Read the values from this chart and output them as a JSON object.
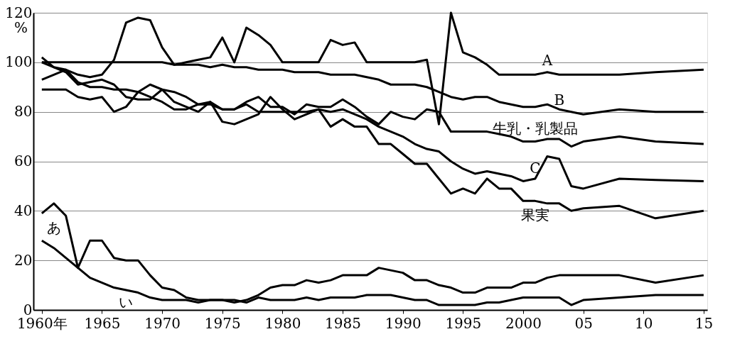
{
  "chart_data": {
    "type": "line",
    "ylabel": "%",
    "x": [
      1960,
      1961,
      1962,
      1963,
      1964,
      1965,
      1966,
      1967,
      1968,
      1969,
      1970,
      1971,
      1972,
      1973,
      1974,
      1975,
      1976,
      1977,
      1978,
      1979,
      1980,
      1981,
      1982,
      1983,
      1984,
      1985,
      1986,
      1987,
      1988,
      1989,
      1990,
      1991,
      1992,
      1993,
      1994,
      1995,
      1996,
      1997,
      1998,
      1999,
      2000,
      2001,
      2002,
      2003,
      2004,
      2005,
      2008,
      2011,
      2015
    ],
    "series": [
      {
        "name": "A",
        "color": "#000000",
        "values": [
          102,
          98,
          97,
          95,
          94,
          95,
          101,
          116,
          118,
          117,
          106,
          99,
          100,
          101,
          102,
          110,
          100,
          114,
          111,
          107,
          100,
          100,
          100,
          100,
          109,
          107,
          108,
          100,
          100,
          100,
          100,
          100,
          101,
          75,
          120,
          104,
          102,
          99,
          95,
          95,
          95,
          95,
          96,
          95,
          95,
          95,
          95,
          96,
          97
        ]
      },
      {
        "name": "B",
        "color": "#000000",
        "values": [
          100,
          100,
          100,
          100,
          100,
          100,
          100,
          100,
          100,
          100,
          100,
          99,
          99,
          99,
          98,
          99,
          98,
          98,
          97,
          97,
          97,
          96,
          96,
          96,
          95,
          95,
          95,
          94,
          93,
          91,
          91,
          91,
          90,
          88,
          86,
          85,
          86,
          86,
          84,
          83,
          82,
          82,
          83,
          81,
          80,
          79,
          81,
          80,
          80
        ]
      },
      {
        "name": "C",
        "color": "#000000",
        "values": [
          93,
          95,
          97,
          92,
          90,
          90,
          89,
          89,
          88,
          86,
          84,
          81,
          81,
          83,
          83,
          81,
          81,
          83,
          80,
          80,
          80,
          80,
          80,
          81,
          80,
          81,
          79,
          77,
          74,
          72,
          70,
          67,
          65,
          64,
          60,
          57,
          55,
          56,
          55,
          54,
          52,
          53,
          62,
          61,
          50,
          49,
          53,
          52.5,
          52
        ]
      },
      {
        "name": "牛乳・乳製品",
        "color": "#000000",
        "values": [
          89,
          89,
          89,
          86,
          85,
          86,
          80,
          82,
          88,
          91,
          89,
          88,
          86,
          83,
          84,
          81,
          81,
          84,
          86,
          82,
          82,
          79,
          83,
          82,
          82,
          85,
          82,
          78,
          75,
          80,
          78,
          77,
          81,
          80,
          72,
          72,
          72,
          72,
          71,
          70,
          68,
          68,
          69,
          69,
          66,
          68,
          70,
          68,
          67
        ]
      },
      {
        "name": "果実",
        "color": "#000000",
        "values": [
          100,
          98,
          96,
          91,
          92,
          93,
          91,
          86,
          85,
          85,
          89,
          84,
          82,
          80,
          84,
          76,
          75,
          77,
          79,
          86,
          81,
          77,
          79,
          81,
          74,
          77,
          74,
          74,
          67,
          67,
          63,
          59,
          59,
          53,
          47,
          49,
          47,
          53,
          49,
          49,
          44,
          44,
          43,
          43,
          40,
          41,
          42,
          37,
          40
        ]
      },
      {
        "name": "あ",
        "color": "#000000",
        "values": [
          39,
          43,
          38,
          17,
          28,
          28,
          21,
          20,
          20,
          14,
          9,
          8,
          5,
          4,
          4,
          4,
          3,
          4,
          6,
          9,
          10,
          10,
          12,
          11,
          12,
          14,
          14,
          14,
          17,
          16,
          15,
          12,
          12,
          10,
          9,
          7,
          7,
          9,
          9,
          9,
          11,
          11,
          13,
          14,
          14,
          14,
          14,
          11,
          14
        ]
      },
      {
        "name": "い",
        "color": "#000000",
        "values": [
          28,
          25,
          21,
          17,
          13,
          11,
          9,
          8,
          7,
          5,
          4,
          4,
          4,
          3,
          4,
          4,
          4,
          3,
          5,
          4,
          4,
          4,
          5,
          4,
          5,
          5,
          5,
          6,
          6,
          6,
          5,
          4,
          4,
          2,
          2,
          2,
          2,
          3,
          3,
          4,
          5,
          5,
          5,
          5,
          2,
          4,
          5,
          6,
          6
        ]
      }
    ],
    "xlim": [
      1959.3,
      2015.3
    ],
    "xticks": [
      {
        "value": 1960,
        "label": "1960年"
      },
      1965,
      1970,
      1975,
      1980,
      1985,
      1990,
      1995,
      2000,
      {
        "value": 2005,
        "label": "05"
      },
      {
        "value": 2010,
        "label": "10"
      },
      {
        "value": 2015,
        "label": "15"
      }
    ],
    "ylim": [
      0,
      120
    ],
    "yticks": [
      0,
      20,
      40,
      60,
      80,
      100,
      120
    ],
    "grid": "y",
    "legend": false,
    "marker": "none",
    "line_style": "solid"
  }
}
